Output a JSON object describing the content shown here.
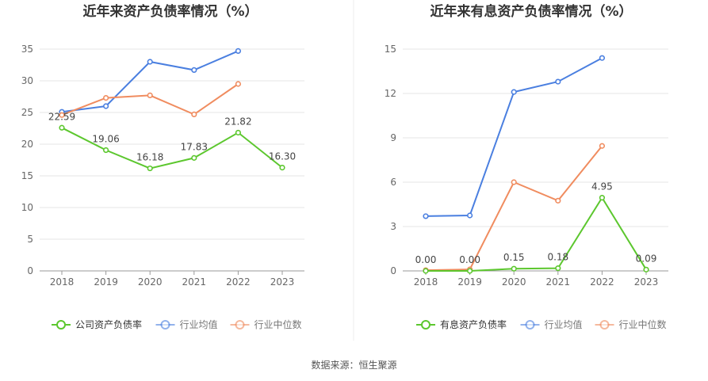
{
  "source_note": "数据来源：恒生聚源",
  "chart_data": [
    {
      "type": "line",
      "title": "近年来资产负债率情况（%）",
      "categories": [
        "2018",
        "2019",
        "2020",
        "2021",
        "2022",
        "2023"
      ],
      "ylim": [
        0,
        35
      ],
      "yticks": [
        0,
        5,
        10,
        15,
        20,
        25,
        30,
        35
      ],
      "grid": true,
      "legend_position": "bottom",
      "series": [
        {
          "name": "公司资产负债率",
          "color": "#5cc72e",
          "values": [
            22.59,
            19.06,
            16.18,
            17.83,
            21.82,
            16.3
          ],
          "labels": [
            "22.59",
            "19.06",
            "16.18",
            "17.83",
            "21.82",
            "16.30"
          ],
          "primary": true
        },
        {
          "name": "行业均值",
          "color": "#4a7fe0",
          "values": [
            25.1,
            26.0,
            33.0,
            31.7,
            34.7,
            null
          ]
        },
        {
          "name": "行业中位数",
          "color": "#f08c5f",
          "values": [
            24.6,
            27.3,
            27.7,
            24.7,
            29.5,
            null
          ]
        }
      ]
    },
    {
      "type": "line",
      "title": "近年来有息资产负债率情况（%）",
      "categories": [
        "2018",
        "2019",
        "2020",
        "2021",
        "2022",
        "2023"
      ],
      "ylim": [
        0,
        15
      ],
      "yticks": [
        0,
        3,
        6,
        9,
        12,
        15
      ],
      "grid": true,
      "legend_position": "bottom",
      "series": [
        {
          "name": "有息资产负债率",
          "color": "#5cc72e",
          "values": [
            0.0,
            0.0,
            0.15,
            0.18,
            4.95,
            0.09
          ],
          "labels": [
            "0.00",
            "0.00",
            "0.15",
            "0.18",
            "4.95",
            "0.09"
          ],
          "primary": true
        },
        {
          "name": "行业均值",
          "color": "#4a7fe0",
          "values": [
            3.7,
            3.75,
            12.1,
            12.8,
            14.4,
            null
          ]
        },
        {
          "name": "行业中位数",
          "color": "#f08c5f",
          "values": [
            0.05,
            0.1,
            6.0,
            4.75,
            8.45,
            null
          ]
        }
      ]
    }
  ]
}
